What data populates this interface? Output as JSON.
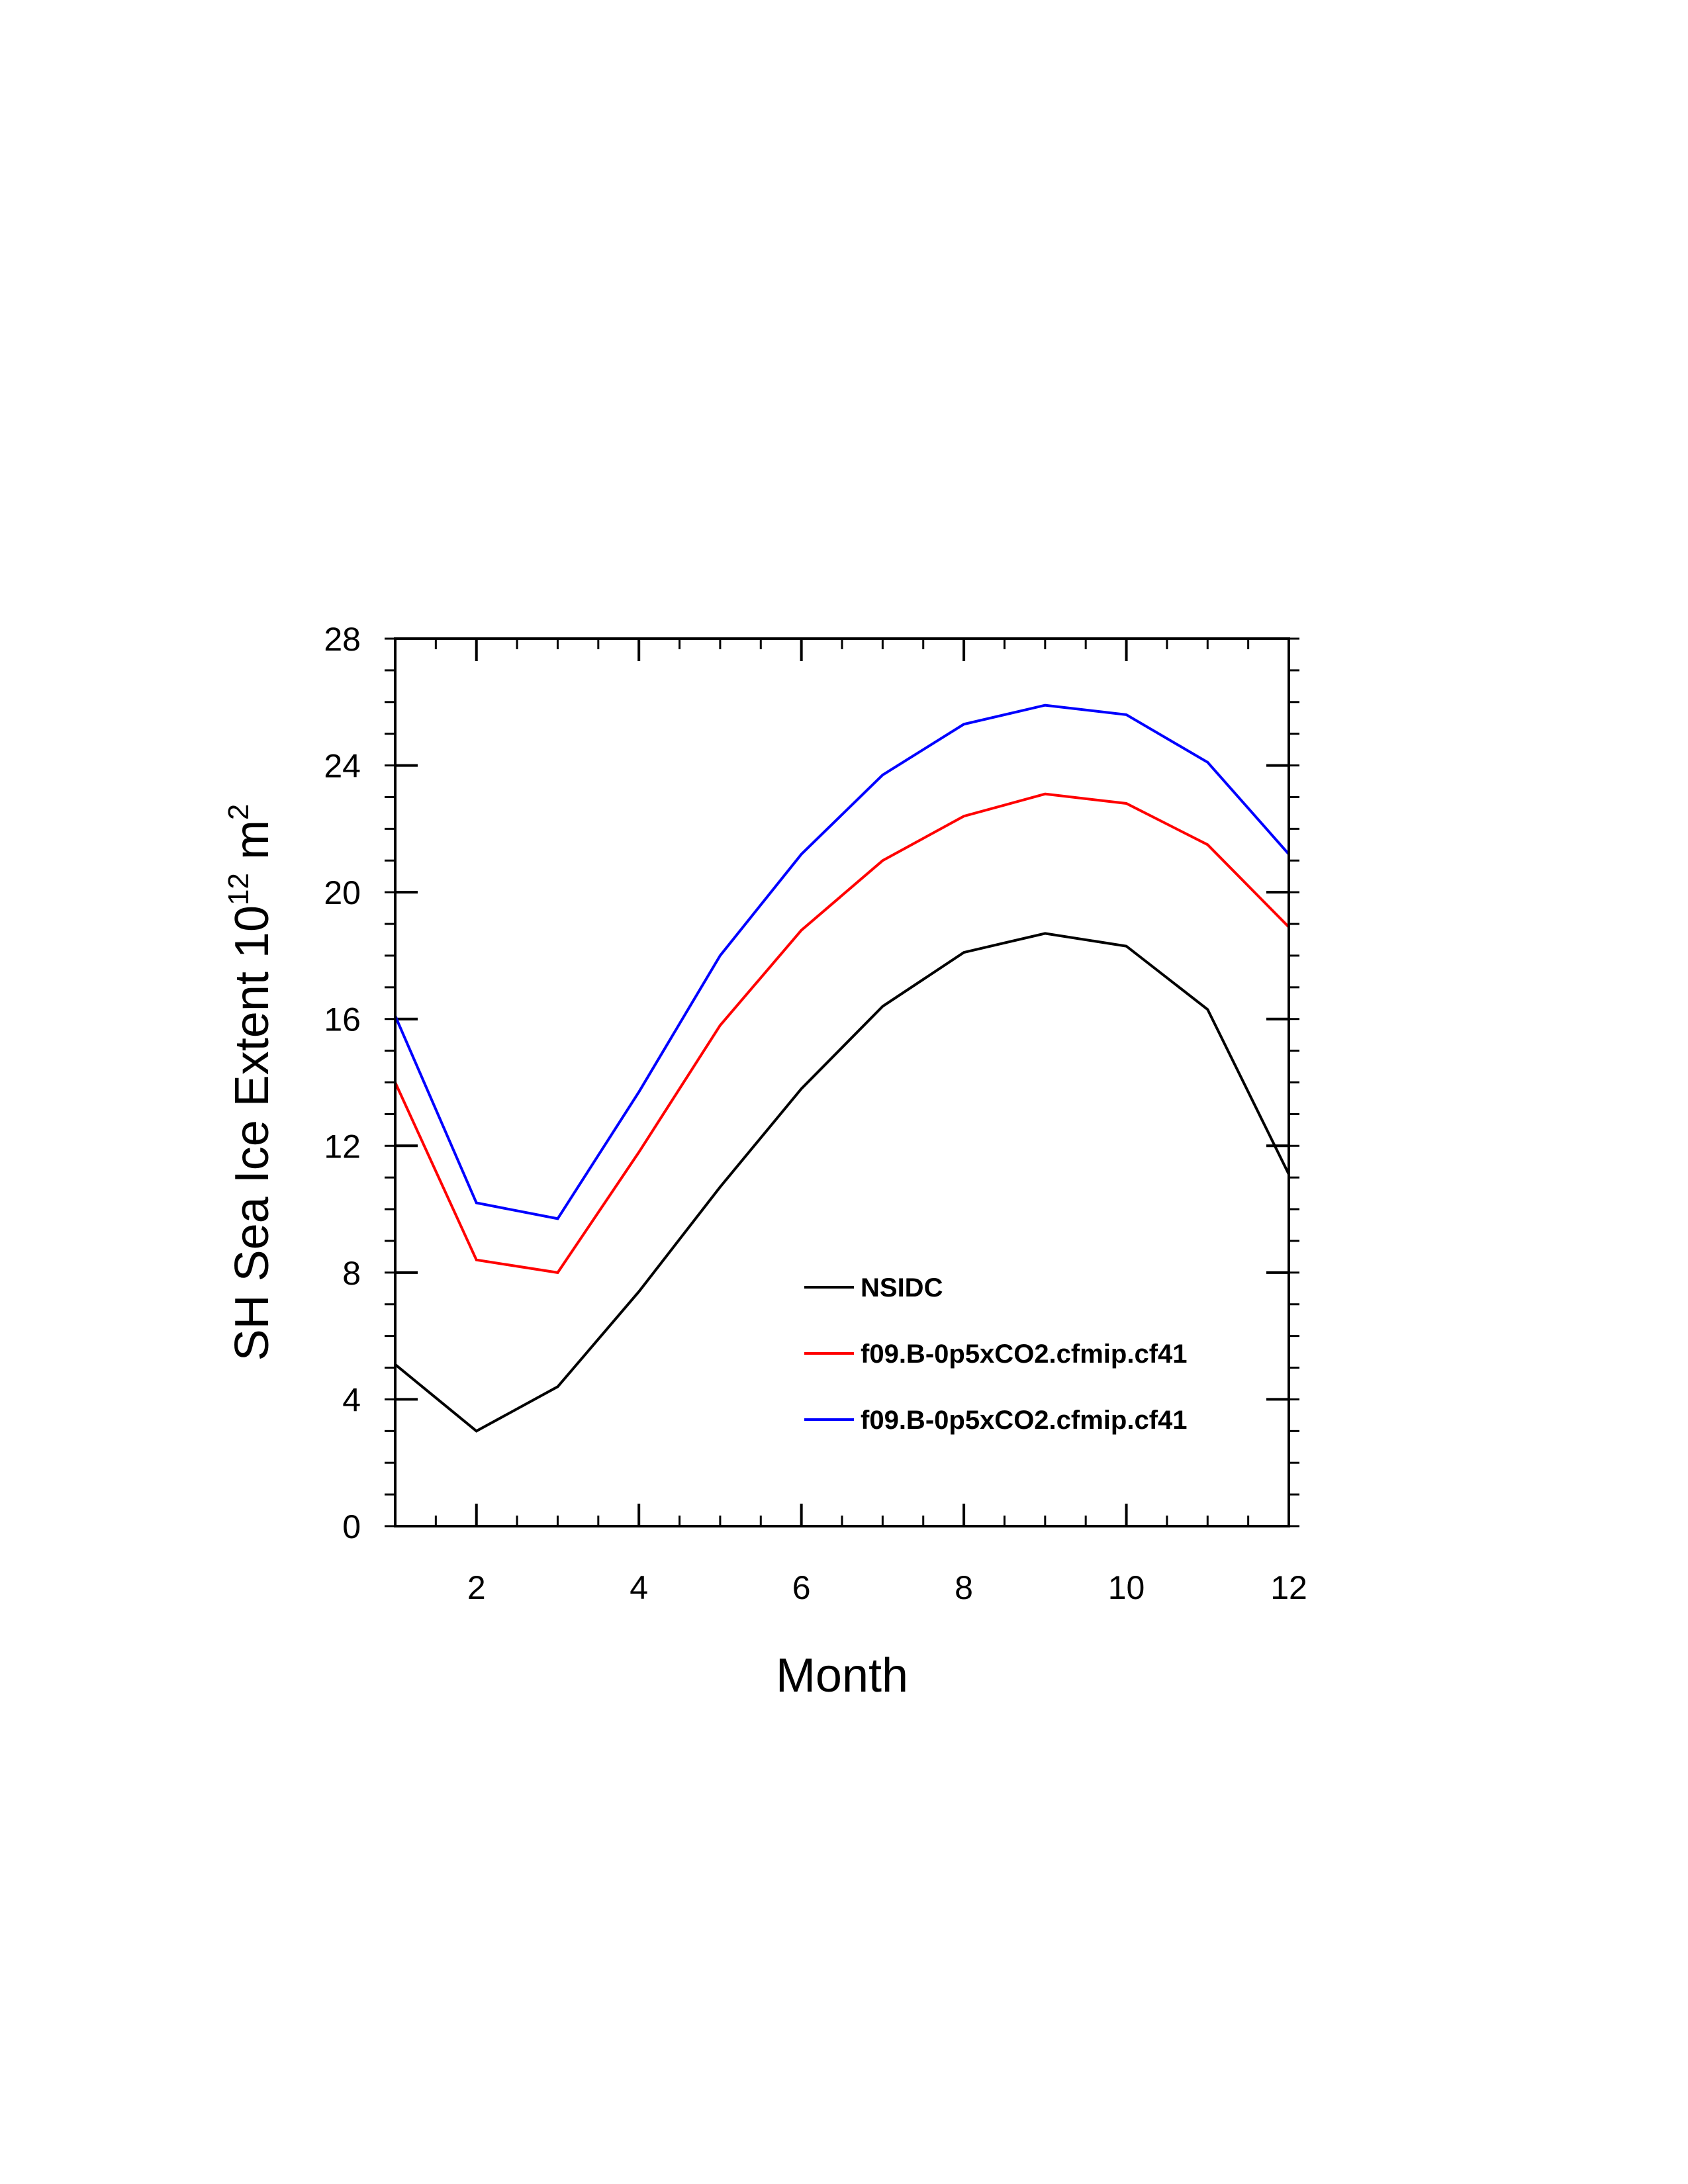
{
  "chart_data": {
    "type": "line",
    "title": "",
    "xlabel": "Month",
    "ylabel_main": "SH Sea Ice Extent 10",
    "ylabel_exponent": "12",
    "ylabel_unit": " m",
    "ylabel_unit_exponent": "2",
    "xlim": [
      1,
      12
    ],
    "ylim": [
      0,
      28
    ],
    "x_major_ticks": [
      2,
      4,
      6,
      8,
      10,
      12
    ],
    "x_tick_labels": [
      "2",
      "4",
      "6",
      "8",
      "10",
      "12"
    ],
    "y_major_ticks": [
      0,
      4,
      8,
      12,
      16,
      20,
      24,
      28
    ],
    "y_tick_labels": [
      "0",
      "4",
      "8",
      "12",
      "16",
      "20",
      "24",
      "28"
    ],
    "grid": false,
    "legend_position": "lower-right inside plot",
    "x": [
      1,
      2,
      3,
      4,
      5,
      6,
      7,
      8,
      9,
      10,
      11,
      12
    ],
    "series": [
      {
        "name": "NSIDC",
        "color": "#000000",
        "values": [
          5.1,
          3.0,
          4.4,
          7.4,
          10.7,
          13.8,
          16.4,
          18.1,
          18.7,
          18.3,
          16.3,
          11.1
        ]
      },
      {
        "name": "f09.B-0p5xCO2.cfmip.cf41",
        "color": "#ff0000",
        "values": [
          14.0,
          8.4,
          8.0,
          11.8,
          15.8,
          18.8,
          21.0,
          22.4,
          23.1,
          22.8,
          21.5,
          18.9
        ]
      },
      {
        "name": "f09.B-0p5xCO2.cfmip.cf41",
        "color": "#0000ff",
        "values": [
          16.1,
          10.2,
          9.7,
          13.7,
          18.0,
          21.2,
          23.7,
          25.3,
          25.9,
          25.6,
          24.1,
          21.2
        ]
      }
    ]
  }
}
